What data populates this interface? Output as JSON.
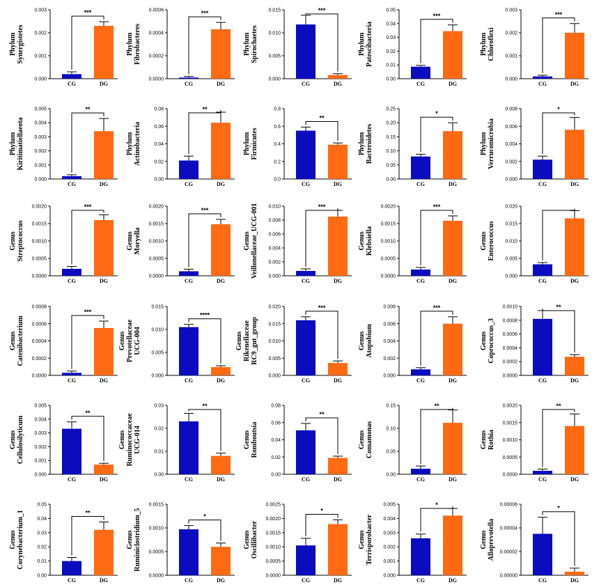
{
  "colors": {
    "CG": "#0b0bbf",
    "DG": "#ff6a13",
    "axis": "#000000"
  },
  "chart_data": [
    {
      "type": "bar",
      "ylabel": [
        "Phylum",
        "Synergistetes"
      ],
      "categories": [
        "CG",
        "DG"
      ],
      "values": [
        0.0002,
        0.0023
      ],
      "errors": [
        0.0001,
        0.00018
      ],
      "ylim": [
        0,
        0.003
      ],
      "yticks": [
        "0.000",
        "0.001",
        "0.002",
        "0.003"
      ],
      "significance": "***"
    },
    {
      "type": "bar",
      "ylabel": [
        "Phylum",
        "Fibrobacteres"
      ],
      "categories": [
        "CG",
        "DG"
      ],
      "values": [
        1e-05,
        0.00043
      ],
      "errors": [
        1e-05,
        6e-05
      ],
      "ylim": [
        0,
        0.0006
      ],
      "yticks": [
        "0.0000",
        "0.0002",
        "0.0004",
        "0.0006"
      ],
      "significance": "***"
    },
    {
      "type": "bar",
      "ylabel": [
        "Phylum",
        "Spirochaetes"
      ],
      "categories": [
        "CG",
        "DG"
      ],
      "values": [
        0.0118,
        0.0008
      ],
      "errors": [
        0.002,
        0.0003
      ],
      "ylim": [
        0,
        0.015
      ],
      "yticks": [
        "0.000",
        "0.005",
        "0.010",
        "0.015"
      ],
      "significance": "***"
    },
    {
      "type": "bar",
      "ylabel": [
        "Phylum",
        "Patescibacteria"
      ],
      "categories": [
        "CG",
        "DG"
      ],
      "values": [
        0.0087,
        0.0345
      ],
      "errors": [
        0.001,
        0.0045
      ],
      "ylim": [
        0,
        0.05
      ],
      "yticks": [
        "0.00",
        "0.01",
        "0.02",
        "0.03",
        "0.04",
        "0.05"
      ],
      "significance": "***"
    },
    {
      "type": "bar",
      "ylabel": [
        "Phylum",
        "Chloroflexi"
      ],
      "categories": [
        "CG",
        "DG"
      ],
      "values": [
        0.0001,
        0.002
      ],
      "errors": [
        5e-05,
        0.0004
      ],
      "ylim": [
        0,
        0.003
      ],
      "yticks": [
        "0.000",
        "0.001",
        "0.002",
        "0.003"
      ],
      "significance": "***"
    },
    {
      "type": "bar",
      "ylabel": [
        "Phylum",
        "Kiritimatiellaeota"
      ],
      "categories": [
        "CG",
        "DG"
      ],
      "values": [
        0.0002,
        0.0034
      ],
      "errors": [
        0.0001,
        0.0009
      ],
      "ylim": [
        0,
        0.005
      ],
      "yticks": [
        "0.000",
        "0.001",
        "0.002",
        "0.003",
        "0.004",
        "0.005"
      ],
      "significance": "**"
    },
    {
      "type": "bar",
      "ylabel": [
        "Phylum",
        "Actinobacteria"
      ],
      "categories": [
        "CG",
        "DG"
      ],
      "values": [
        0.021,
        0.064
      ],
      "errors": [
        0.005,
        0.012
      ],
      "ylim": [
        0,
        0.08
      ],
      "yticks": [
        "0.00",
        "0.02",
        "0.04",
        "0.06",
        "0.08"
      ],
      "significance": "**"
    },
    {
      "type": "bar",
      "ylabel": [
        "Phylum",
        "Firmicutes"
      ],
      "categories": [
        "CG",
        "DG"
      ],
      "values": [
        0.55,
        0.39
      ],
      "errors": [
        0.04,
        0.02
      ],
      "ylim": [
        0,
        0.8
      ],
      "yticks": [
        "0.0",
        "0.2",
        "0.4",
        "0.6",
        "0.8"
      ],
      "significance": "**"
    },
    {
      "type": "bar",
      "ylabel": [
        "Phylum",
        "Bacteroidetes"
      ],
      "categories": [
        "CG",
        "DG"
      ],
      "values": [
        0.08,
        0.17
      ],
      "errors": [
        0.008,
        0.03
      ],
      "ylim": [
        0,
        0.25
      ],
      "yticks": [
        "0.00",
        "0.05",
        "0.10",
        "0.15",
        "0.20",
        "0.25"
      ],
      "significance": "*"
    },
    {
      "type": "bar",
      "ylabel": [
        "Phylum",
        "Verrucomicrobia"
      ],
      "categories": [
        "CG",
        "DG"
      ],
      "values": [
        0.0022,
        0.0056
      ],
      "errors": [
        0.0004,
        0.0014
      ],
      "ylim": [
        0,
        0.008
      ],
      "yticks": [
        "0.000",
        "0.002",
        "0.004",
        "0.006",
        "0.008"
      ],
      "significance": "*"
    },
    {
      "type": "bar",
      "ylabel": [
        "Genus",
        "Streptococcus"
      ],
      "categories": [
        "CG",
        "DG"
      ],
      "values": [
        0.0002,
        0.0016
      ],
      "errors": [
        7e-05,
        0.00015
      ],
      "ylim": [
        0,
        0.002
      ],
      "yticks": [
        "0.0000",
        "0.0005",
        "0.0010",
        "0.0015",
        "0.0020"
      ],
      "significance": "***"
    },
    {
      "type": "bar",
      "ylabel": [
        "Genus",
        "Moryella"
      ],
      "categories": [
        "CG",
        "DG"
      ],
      "values": [
        0.00013,
        0.00148
      ],
      "errors": [
        6e-05,
        0.00014
      ],
      "ylim": [
        0,
        0.002
      ],
      "yticks": [
        "0.0000",
        "0.0005",
        "0.0010",
        "0.0015",
        "0.0020"
      ],
      "significance": "***"
    },
    {
      "type": "bar",
      "ylabel": [
        "Genus",
        "Veillonellaceae_UCG-001"
      ],
      "categories": [
        "CG",
        "DG"
      ],
      "values": [
        0.0007,
        0.0085
      ],
      "errors": [
        0.0003,
        0.0009
      ],
      "ylim": [
        0,
        0.01
      ],
      "yticks": [
        "0.000",
        "0.002",
        "0.004",
        "0.006",
        "0.008",
        "0.010"
      ],
      "significance": "***"
    },
    {
      "type": "bar",
      "ylabel": [
        "Genus",
        "Klebsiella"
      ],
      "categories": [
        "CG",
        "DG"
      ],
      "values": [
        0.00018,
        0.00158
      ],
      "errors": [
        6e-05,
        0.00014
      ],
      "ylim": [
        0,
        0.002
      ],
      "yticks": [
        "0.0000",
        "0.0005",
        "0.0010",
        "0.0015",
        "0.0020"
      ],
      "significance": "***"
    },
    {
      "type": "bar",
      "ylabel": [
        "Genus",
        "Enterococcus"
      ],
      "categories": [
        "CG",
        "DG"
      ],
      "values": [
        0.0033,
        0.0165
      ],
      "errors": [
        0.0005,
        0.0022
      ],
      "ylim": [
        0,
        0.02
      ],
      "yticks": [
        "0.000",
        "0.005",
        "0.010",
        "0.015",
        "0.020"
      ],
      "significance": ""
    },
    {
      "type": "bar",
      "ylabel": [
        "Genus",
        "Catenibacterium"
      ],
      "categories": [
        "CG",
        "DG"
      ],
      "values": [
        3e-05,
        0.00055
      ],
      "errors": [
        2e-05,
        8e-05
      ],
      "ylim": [
        0,
        0.0008
      ],
      "yticks": [
        "0.0000",
        "0.0002",
        "0.0004",
        "0.0006",
        "0.0008"
      ],
      "significance": "***"
    },
    {
      "type": "bar",
      "ylabel": [
        "Genus",
        "Prevotellaceae",
        "UCG-004"
      ],
      "categories": [
        "CG",
        "DG"
      ],
      "values": [
        0.0105,
        0.0018
      ],
      "errors": [
        0.0006,
        0.0003
      ],
      "ylim": [
        0,
        0.015
      ],
      "yticks": [
        "0.000",
        "0.005",
        "0.010",
        "0.015"
      ],
      "significance": "****"
    },
    {
      "type": "bar",
      "ylabel": [
        "Genus",
        "Rikenellaceae",
        "RC9_gut_group"
      ],
      "categories": [
        "CG",
        "DG"
      ],
      "values": [
        0.016,
        0.0036
      ],
      "errors": [
        0.001,
        0.0006
      ],
      "ylim": [
        0,
        0.02
      ],
      "yticks": [
        "0.000",
        "0.005",
        "0.010",
        "0.015",
        "0.020"
      ],
      "significance": "***"
    },
    {
      "type": "bar",
      "ylabel": [
        "Genus",
        "Atopobium"
      ],
      "categories": [
        "CG",
        "DG"
      ],
      "values": [
        0.0007,
        0.006
      ],
      "errors": [
        0.0002,
        0.0008
      ],
      "ylim": [
        0,
        0.008
      ],
      "yticks": [
        "0.000",
        "0.002",
        "0.004",
        "0.006",
        "0.008"
      ],
      "significance": "***"
    },
    {
      "type": "bar",
      "ylabel": [
        "Genus",
        "Coprococcus_3"
      ],
      "categories": [
        "CG",
        "DG"
      ],
      "values": [
        0.00082,
        0.00027
      ],
      "errors": [
        0.00012,
        3e-05
      ],
      "ylim": [
        0,
        0.001
      ],
      "yticks": [
        "0.0000",
        "0.0002",
        "0.0004",
        "0.0006",
        "0.0008",
        "0.0010"
      ],
      "significance": "**"
    },
    {
      "type": "bar",
      "ylabel": [
        "Genus",
        "Cellulosilyticum"
      ],
      "categories": [
        "CG",
        "DG"
      ],
      "values": [
        0.0033,
        0.0007
      ],
      "errors": [
        0.0005,
        0.0001
      ],
      "ylim": [
        0,
        0.005
      ],
      "yticks": [
        "0.000",
        "0.001",
        "0.002",
        "0.003",
        "0.004",
        "0.005"
      ],
      "significance": "**"
    },
    {
      "type": "bar",
      "ylabel": [
        "Genus",
        "Ruminococcaceae",
        "UCG-014"
      ],
      "categories": [
        "CG",
        "DG"
      ],
      "values": [
        0.023,
        0.008
      ],
      "errors": [
        0.0035,
        0.0012
      ],
      "ylim": [
        0,
        0.03
      ],
      "yticks": [
        "0.00",
        "0.01",
        "0.02",
        "0.03"
      ],
      "significance": "**"
    },
    {
      "type": "bar",
      "ylabel": [
        "Genus",
        "Romboutsia"
      ],
      "categories": [
        "CG",
        "DG"
      ],
      "values": [
        0.051,
        0.019
      ],
      "errors": [
        0.008,
        0.002
      ],
      "ylim": [
        0,
        0.08
      ],
      "yticks": [
        "0.00",
        "0.02",
        "0.04",
        "0.06",
        "0.08"
      ],
      "significance": "**"
    },
    {
      "type": "bar",
      "ylabel": [
        "Genus",
        "Comamonas"
      ],
      "categories": [
        "CG",
        "DG"
      ],
      "values": [
        0.012,
        0.112
      ],
      "errors": [
        0.006,
        0.028
      ],
      "ylim": [
        0,
        0.15
      ],
      "yticks": [
        "0.00",
        "0.05",
        "0.10",
        "0.15"
      ],
      "significance": "**"
    },
    {
      "type": "bar",
      "ylabel": [
        "Genus",
        "Rothia"
      ],
      "categories": [
        "CG",
        "DG"
      ],
      "values": [
        0.0001,
        0.0014
      ],
      "errors": [
        5e-05,
        0.00035
      ],
      "ylim": [
        0,
        0.002
      ],
      "yticks": [
        "0.0000",
        "0.0005",
        "0.0010",
        "0.0015",
        "0.0020"
      ],
      "significance": "**"
    },
    {
      "type": "bar",
      "ylabel": [
        "Genus",
        "Corynebacterium_1"
      ],
      "categories": [
        "CG",
        "DG"
      ],
      "values": [
        0.01,
        0.032
      ],
      "errors": [
        0.0025,
        0.0055
      ],
      "ylim": [
        0,
        0.05
      ],
      "yticks": [
        "0.00",
        "0.01",
        "0.02",
        "0.03",
        "0.04",
        "0.05"
      ],
      "significance": "**"
    },
    {
      "type": "bar",
      "ylabel": [
        "Genus",
        "Ruminiclostridium_5"
      ],
      "categories": [
        "CG",
        "DG"
      ],
      "values": [
        0.00097,
        0.0006
      ],
      "errors": [
        8e-05,
        8e-05
      ],
      "ylim": [
        0,
        0.0015
      ],
      "yticks": [
        "0.0000",
        "0.0005",
        "0.0010",
        "0.0015"
      ],
      "significance": "*"
    },
    {
      "type": "bar",
      "ylabel": [
        "Genus",
        "Oscillibacter"
      ],
      "categories": [
        "CG",
        "DG"
      ],
      "values": [
        0.00105,
        0.0018
      ],
      "errors": [
        0.00025,
        0.00015
      ],
      "ylim": [
        0,
        0.0025
      ],
      "yticks": [
        "0.0000",
        "0.0005",
        "0.0010",
        "0.0015",
        "0.0020",
        "0.0025"
      ],
      "significance": "*"
    },
    {
      "type": "bar",
      "ylabel": [
        "Genus",
        "Terrisporobacter"
      ],
      "categories": [
        "CG",
        "DG"
      ],
      "values": [
        0.0026,
        0.0042
      ],
      "errors": [
        0.0003,
        0.0005
      ],
      "ylim": [
        0,
        0.005
      ],
      "yticks": [
        "0.000",
        "0.001",
        "0.002",
        "0.003",
        "0.004",
        "0.005"
      ],
      "significance": "*"
    },
    {
      "type": "bar",
      "ylabel": [
        "Genus",
        "Alloprevotella"
      ],
      "categories": [
        "CG",
        "DG"
      ],
      "values": [
        3.5e-05,
        3e-06
      ],
      "errors": [
        1.4e-05,
        3e-06
      ],
      "ylim": [
        0,
        6e-05
      ],
      "yticks": [
        "0.00000",
        "0.00002",
        "0.00004",
        "0.00006"
      ],
      "significance": "*"
    }
  ]
}
